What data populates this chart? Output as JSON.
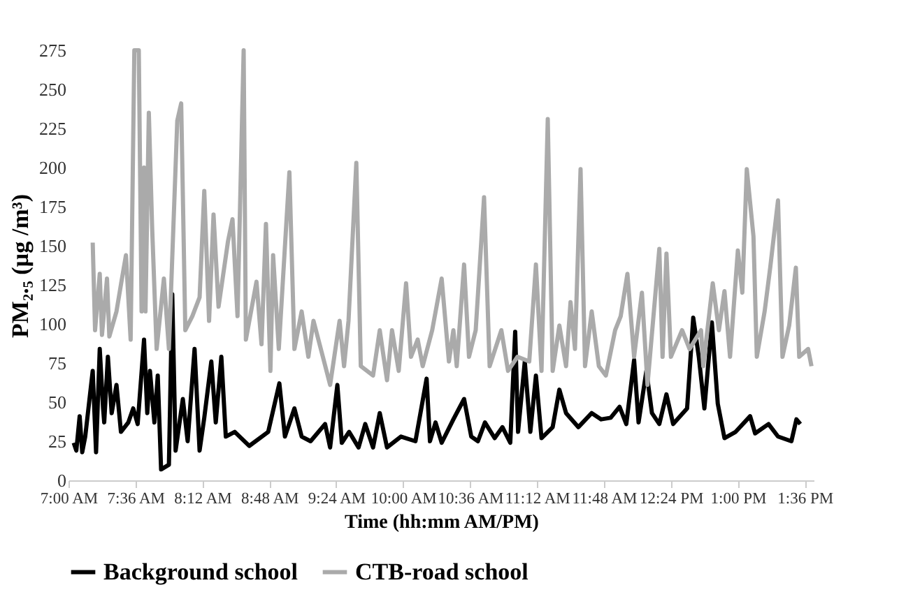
{
  "chart_data": {
    "type": "line",
    "xlabel": "Time  (hh:mm AM/PM)",
    "ylabel": "PM₂.₅  (µg /m³)",
    "xlim": [
      7,
      13.68
    ],
    "ylim": [
      0,
      275
    ],
    "xticks": [
      {
        "value": 7,
        "label": "7:00 AM"
      },
      {
        "value": 7.6,
        "label": "7:36 AM"
      },
      {
        "value": 8.2,
        "label": "8:12 AM"
      },
      {
        "value": 8.8,
        "label": "8:48 AM"
      },
      {
        "value": 9.4,
        "label": "9:24 AM"
      },
      {
        "value": 10,
        "label": "10:00 AM"
      },
      {
        "value": 10.6,
        "label": "10:36 AM"
      },
      {
        "value": 11.2,
        "label": "11:12 AM"
      },
      {
        "value": 11.8,
        "label": "11:48 AM"
      },
      {
        "value": 12.4,
        "label": "12:24 PM"
      },
      {
        "value": 13,
        "label": "1:00 PM"
      },
      {
        "value": 13.6,
        "label": "1:36 PM"
      }
    ],
    "yticks": [
      0,
      25,
      50,
      75,
      100,
      125,
      150,
      175,
      200,
      225,
      250,
      275
    ],
    "grid": false,
    "legend": "bottom",
    "marker": "none",
    "line_style": "solid",
    "series": [
      {
        "name": "Background school",
        "color": "#000000",
        "x": [
          7.047,
          7.07,
          7.1,
          7.123,
          7.15,
          7.217,
          7.247,
          7.28,
          7.31,
          7.32,
          7.353,
          7.387,
          7.43,
          7.47,
          7.536,
          7.58,
          7.62,
          7.677,
          7.706,
          7.73,
          7.77,
          7.8,
          7.83,
          7.9,
          7.93,
          7.96,
          8.025,
          8.068,
          8.13,
          8.175,
          8.217,
          8.28,
          8.32,
          8.37,
          8.41,
          8.49,
          8.62,
          8.79,
          8.89,
          8.94,
          9.025,
          9.09,
          9.17,
          9.3,
          9.345,
          9.41,
          9.45,
          9.515,
          9.6,
          9.66,
          9.73,
          9.79,
          9.855,
          9.98,
          10.11,
          10.21,
          10.24,
          10.29,
          10.345,
          10.45,
          10.546,
          10.61,
          10.67,
          10.733,
          10.82,
          10.89,
          10.96,
          11.004,
          11.03,
          11.09,
          11.14,
          11.19,
          11.24,
          11.34,
          11.4,
          11.46,
          11.57,
          11.69,
          11.775,
          11.86,
          11.94,
          12.0,
          12.07,
          12.11,
          12.18,
          12.23,
          12.296,
          12.36,
          12.42,
          12.545,
          12.6,
          12.65,
          12.7,
          12.767,
          12.82,
          12.88,
          12.98,
          13.11,
          13.155,
          13.275,
          13.36,
          13.48,
          13.525,
          13.56
        ],
        "values": [
          24,
          19,
          41,
          18,
          28,
          70,
          18,
          84,
          46,
          37,
          79,
          43,
          61,
          31,
          37,
          46,
          36,
          90,
          43,
          70,
          37,
          67,
          7,
          10,
          119,
          19,
          52,
          25,
          84,
          19,
          40,
          76,
          37,
          79,
          28,
          31,
          22,
          31,
          62,
          28,
          46,
          28,
          25,
          36,
          21,
          61,
          24,
          31,
          21,
          36,
          21,
          43,
          21,
          28,
          25,
          65,
          25,
          37,
          24,
          39,
          52,
          28,
          25,
          37,
          27,
          34,
          24,
          95,
          31,
          76,
          31,
          67,
          27,
          34,
          58,
          43,
          34,
          43,
          39,
          40,
          47,
          36,
          77,
          37,
          70,
          43,
          36,
          55,
          36,
          46,
          104,
          79,
          46,
          101,
          49,
          27,
          31,
          41,
          30,
          36,
          28,
          25,
          39,
          36
        ]
      },
      {
        "name": "CTB-road school",
        "color": "#aaaaaa",
        "x": [
          7.217,
          7.238,
          7.28,
          7.3,
          7.345,
          7.366,
          7.43,
          7.472,
          7.515,
          7.557,
          7.59,
          7.63,
          7.655,
          7.677,
          7.69,
          7.72,
          7.75,
          7.79,
          7.855,
          7.9,
          7.975,
          8.01,
          8.047,
          8.11,
          8.175,
          8.217,
          8.26,
          8.3,
          8.345,
          8.43,
          8.47,
          8.515,
          8.57,
          8.59,
          8.685,
          8.73,
          8.77,
          8.81,
          8.834,
          8.885,
          8.98,
          9.025,
          9.09,
          9.15,
          9.196,
          9.28,
          9.345,
          9.43,
          9.47,
          9.51,
          9.58,
          9.62,
          9.73,
          9.79,
          9.855,
          9.9,
          9.96,
          10.026,
          10.07,
          10.13,
          10.175,
          10.26,
          10.345,
          10.41,
          10.45,
          10.48,
          10.546,
          10.59,
          10.65,
          10.725,
          10.775,
          10.88,
          10.94,
          11.025,
          11.13,
          11.19,
          11.24,
          11.296,
          11.34,
          11.4,
          11.46,
          11.5,
          11.54,
          11.59,
          11.63,
          11.69,
          11.754,
          11.817,
          11.9,
          11.95,
          12.01,
          12.07,
          12.14,
          12.19,
          12.296,
          12.325,
          12.36,
          12.4,
          12.5,
          12.567,
          12.67,
          12.69,
          12.775,
          12.83,
          12.88,
          12.93,
          13.0,
          13.04,
          13.08,
          13.14,
          13.17,
          13.24,
          13.29,
          13.36,
          13.4,
          13.46,
          13.52,
          13.55,
          13.63,
          13.66
        ],
        "values": [
          152,
          96,
          132,
          93,
          129,
          92,
          108,
          126,
          144,
          90,
          275,
          275,
          108,
          200,
          108,
          235,
          161,
          84,
          129,
          84,
          230,
          241,
          96,
          105,
          117,
          185,
          102,
          170,
          111,
          153,
          167,
          105,
          275,
          90,
          127,
          87,
          164,
          70,
          144,
          84,
          197,
          84,
          108,
          79,
          102,
          79,
          61,
          102,
          73,
          102,
          203,
          73,
          67,
          96,
          64,
          96,
          70,
          126,
          79,
          90,
          73,
          96,
          129,
          76,
          96,
          73,
          138,
          79,
          96,
          181,
          73,
          96,
          70,
          79,
          76,
          138,
          70,
          231,
          70,
          99,
          73,
          114,
          84,
          199,
          73,
          108,
          73,
          67,
          96,
          105,
          132,
          79,
          120,
          61,
          148,
          79,
          145,
          79,
          96,
          84,
          96,
          73,
          126,
          96,
          121,
          79,
          147,
          120,
          199,
          156,
          79,
          108,
          136,
          179,
          79,
          99,
          136,
          79,
          84,
          73
        ]
      }
    ]
  }
}
